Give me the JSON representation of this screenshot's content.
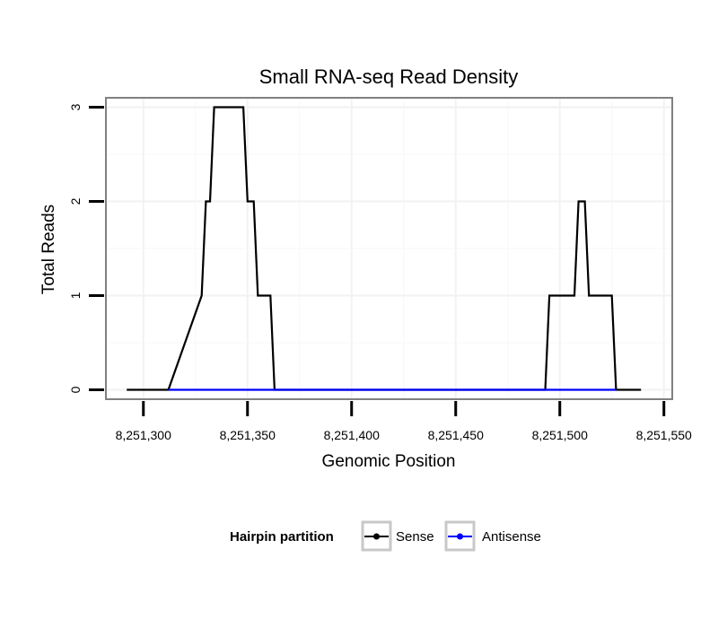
{
  "chart_data": {
    "type": "line",
    "title": "Small RNA-seq Read Density",
    "xlabel": "Genomic Position",
    "ylabel": "Total Reads",
    "xlim": [
      8251282,
      8251554
    ],
    "ylim": [
      -0.1,
      3.1
    ],
    "x_ticks": [
      8251300,
      8251350,
      8251400,
      8251450,
      8251500,
      8251550
    ],
    "x_tick_labels": [
      "8,251,300",
      "8,251,350",
      "8,251,400",
      "8,251,450",
      "8,251,500",
      "8,251,550"
    ],
    "y_ticks": [
      0,
      1,
      2,
      3
    ],
    "y_tick_labels": [
      "0",
      "1",
      "2",
      "3"
    ],
    "grid": true,
    "legend": {
      "title": "Hairpin partition",
      "position": "bottom",
      "entries": [
        "Sense",
        "Antisense"
      ]
    },
    "series": [
      {
        "name": "Sense",
        "color": "#000000",
        "x": [
          8251292,
          8251303,
          8251312,
          8251328,
          8251330,
          8251332,
          8251334,
          8251348,
          8251350,
          8251353,
          8251355,
          8251361,
          8251363,
          8251400,
          8251450,
          8251493,
          8251495,
          8251507,
          8251509,
          8251512,
          8251514,
          8251525,
          8251527,
          8251539
        ],
        "y": [
          0,
          0,
          0,
          1,
          2,
          2,
          3,
          3,
          2,
          2,
          1,
          1,
          0,
          0,
          0,
          0,
          1,
          1,
          2,
          2,
          1,
          1,
          0,
          0
        ]
      },
      {
        "name": "Antisense",
        "color": "#0000ff",
        "x": [
          8251312,
          8251363,
          8251493,
          8251527
        ],
        "y": [
          0,
          0,
          0,
          0
        ]
      }
    ]
  }
}
